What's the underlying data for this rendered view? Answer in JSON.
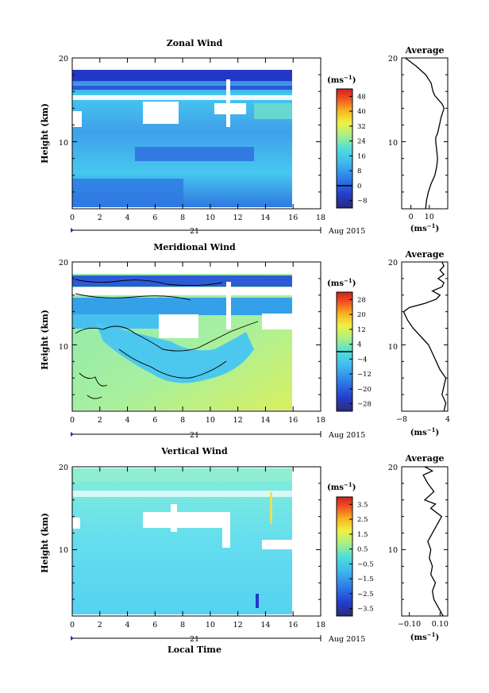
{
  "chart_data": [
    {
      "type": "heatmap",
      "title": "Zonal Wind",
      "ylabel": "Height (km)",
      "xlim": [
        0,
        18
      ],
      "ylim": [
        2,
        20
      ],
      "x_ticks": [
        "0",
        "2",
        "4",
        "6",
        "8",
        "10",
        "12",
        "14",
        "16",
        "18"
      ],
      "y_ticks": [
        "10",
        "20"
      ],
      "date_label": "21",
      "month_label": "Aug 2015",
      "colorbar": {
        "unit": "(ms",
        "unit_exp": "−1",
        "unit_close": ")",
        "ticks": [
          "48",
          "40",
          "32",
          "24",
          "16",
          "8",
          "0",
          "−8"
        ],
        "tick_values": [
          48,
          40,
          32,
          24,
          16,
          8,
          0,
          -8
        ],
        "range": [
          -12,
          52
        ],
        "zero_value": 0
      },
      "average": {
        "title": "Average",
        "xlim": [
          -5,
          20
        ],
        "x_ticks": [
          "0",
          "10"
        ],
        "x_tick_values": [
          0,
          10
        ],
        "y_ticks": [
          "10",
          "20"
        ],
        "unit": "(ms",
        "unit_exp": "−1",
        "unit_close": ")",
        "profile": [
          [
            8,
            2
          ],
          [
            8.5,
            3
          ],
          [
            9.5,
            4
          ],
          [
            11,
            5
          ],
          [
            13,
            6
          ],
          [
            14,
            7
          ],
          [
            14.5,
            8
          ],
          [
            14,
            9
          ],
          [
            13.5,
            10
          ],
          [
            13.5,
            10.5
          ],
          [
            14.5,
            11
          ],
          [
            15.5,
            12
          ],
          [
            16.5,
            13
          ],
          [
            18,
            14
          ],
          [
            17,
            14.5
          ],
          [
            15,
            15
          ],
          [
            13,
            15.5
          ],
          [
            12,
            16
          ],
          [
            11,
            17
          ],
          [
            8,
            18
          ],
          [
            3,
            19
          ],
          [
            -3,
            20
          ]
        ]
      }
    },
    {
      "type": "heatmap",
      "title": "Meridional Wind",
      "ylabel": "Height (km)",
      "xlim": [
        0,
        18
      ],
      "ylim": [
        2,
        20
      ],
      "x_ticks": [
        "0",
        "2",
        "4",
        "6",
        "8",
        "10",
        "12",
        "14",
        "16",
        "18"
      ],
      "y_ticks": [
        "10",
        "20"
      ],
      "date_label": "21",
      "month_label": "Aug 2015",
      "colorbar": {
        "unit": "(ms",
        "unit_exp": "−1",
        "unit_close": ")",
        "ticks": [
          "28",
          "20",
          "12",
          "4",
          "−4",
          "−12",
          "−20",
          "−28"
        ],
        "tick_values": [
          28,
          20,
          12,
          4,
          -4,
          -12,
          -20,
          -28
        ],
        "range": [
          -32,
          32
        ],
        "zero_value": 0
      },
      "average": {
        "title": "Average",
        "xlim": [
          -8,
          4
        ],
        "x_ticks": [
          "−8",
          "4"
        ],
        "x_tick_values": [
          -8,
          4
        ],
        "y_ticks": [
          "10",
          "20"
        ],
        "unit": "(ms",
        "unit_exp": "−1",
        "unit_close": ")",
        "profile": [
          [
            3,
            2
          ],
          [
            3.5,
            3
          ],
          [
            2.5,
            4
          ],
          [
            3,
            5
          ],
          [
            3.5,
            6
          ],
          [
            2,
            7
          ],
          [
            1,
            8
          ],
          [
            0,
            9
          ],
          [
            -1,
            10
          ],
          [
            -3,
            11
          ],
          [
            -5,
            12
          ],
          [
            -6.5,
            13
          ],
          [
            -7.5,
            14
          ],
          [
            -6,
            14.5
          ],
          [
            -2,
            15
          ],
          [
            1,
            15.5
          ],
          [
            2,
            16
          ],
          [
            0,
            16.5
          ],
          [
            2.5,
            17
          ],
          [
            3,
            17.5
          ],
          [
            1.5,
            18
          ],
          [
            3,
            18.5
          ],
          [
            2,
            19
          ],
          [
            3,
            19.5
          ],
          [
            2.5,
            20
          ]
        ]
      }
    },
    {
      "type": "heatmap",
      "title": "Vertical Wind",
      "ylabel": "Height (km)",
      "xlabel": "Local Time",
      "xlim": [
        0,
        18
      ],
      "ylim": [
        2,
        20
      ],
      "x_ticks": [
        "0",
        "2",
        "4",
        "6",
        "8",
        "10",
        "12",
        "14",
        "16",
        "18"
      ],
      "y_ticks": [
        "10",
        "20"
      ],
      "date_label": "21",
      "month_label": "Aug 2015",
      "colorbar": {
        "unit": "(ms",
        "unit_exp": "−1",
        "unit_close": ")",
        "ticks": [
          "3.5",
          "2.5",
          "1.5",
          "0.5",
          "−0.5",
          "−1.5",
          "−2.5",
          "−3.5"
        ],
        "tick_values": [
          3.5,
          2.5,
          1.5,
          0.5,
          -0.5,
          -1.5,
          -2.5,
          -3.5
        ],
        "range": [
          -4,
          4
        ],
        "zero_value": null
      },
      "average": {
        "title": "Average",
        "xlim": [
          -0.15,
          0.15
        ],
        "x_ticks": [
          "−0.10",
          "0.10"
        ],
        "x_tick_values": [
          -0.1,
          0.1
        ],
        "y_ticks": [
          "10",
          "20"
        ],
        "unit": "(ms",
        "unit_exp": "−1",
        "unit_close": ")",
        "profile": [
          [
            0.12,
            2
          ],
          [
            0.09,
            3
          ],
          [
            0.06,
            4
          ],
          [
            0.05,
            5
          ],
          [
            0.07,
            6
          ],
          [
            0.04,
            7
          ],
          [
            0.05,
            8
          ],
          [
            0.03,
            9
          ],
          [
            0.04,
            10
          ],
          [
            0.02,
            11
          ],
          [
            0.05,
            12
          ],
          [
            0.08,
            13
          ],
          [
            0.11,
            14
          ],
          [
            0.04,
            15
          ],
          [
            0.07,
            15.5
          ],
          [
            0,
            16
          ],
          [
            0.06,
            17
          ],
          [
            0.02,
            18
          ],
          [
            -0.01,
            19
          ],
          [
            0.05,
            19.5
          ],
          [
            0,
            20
          ]
        ]
      }
    }
  ]
}
